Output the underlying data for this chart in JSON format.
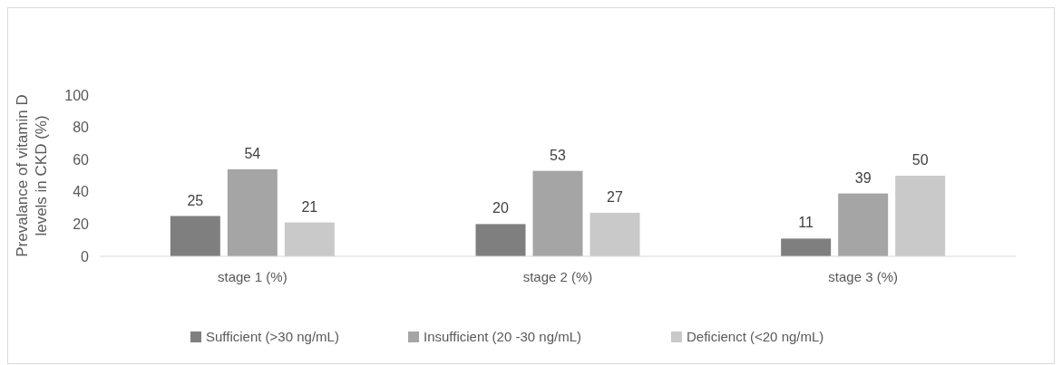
{
  "chart_data": {
    "type": "bar",
    "ylabel": "Prevalance of vitamin D levels in CKD (%)",
    "categories": [
      "stage 1 (%)",
      "stage 2 (%)",
      "stage 3 (%)"
    ],
    "series": [
      {
        "name": "Sufficient (>30 ng/mL)",
        "color": "#7f7f7f",
        "values": [
          25,
          20,
          11
        ]
      },
      {
        "name": "Insufficient (20 -30 ng/mL)",
        "color": "#a5a5a5",
        "values": [
          54,
          53,
          39
        ]
      },
      {
        "name": "Deficienct (<20 ng/mL)",
        "color": "#c9c9c9",
        "values": [
          21,
          27,
          50
        ]
      }
    ],
    "ylim": [
      0,
      100
    ],
    "yticks": [
      0,
      20,
      40,
      60,
      80,
      100
    ],
    "data_labels": true,
    "legend": "bottom"
  }
}
